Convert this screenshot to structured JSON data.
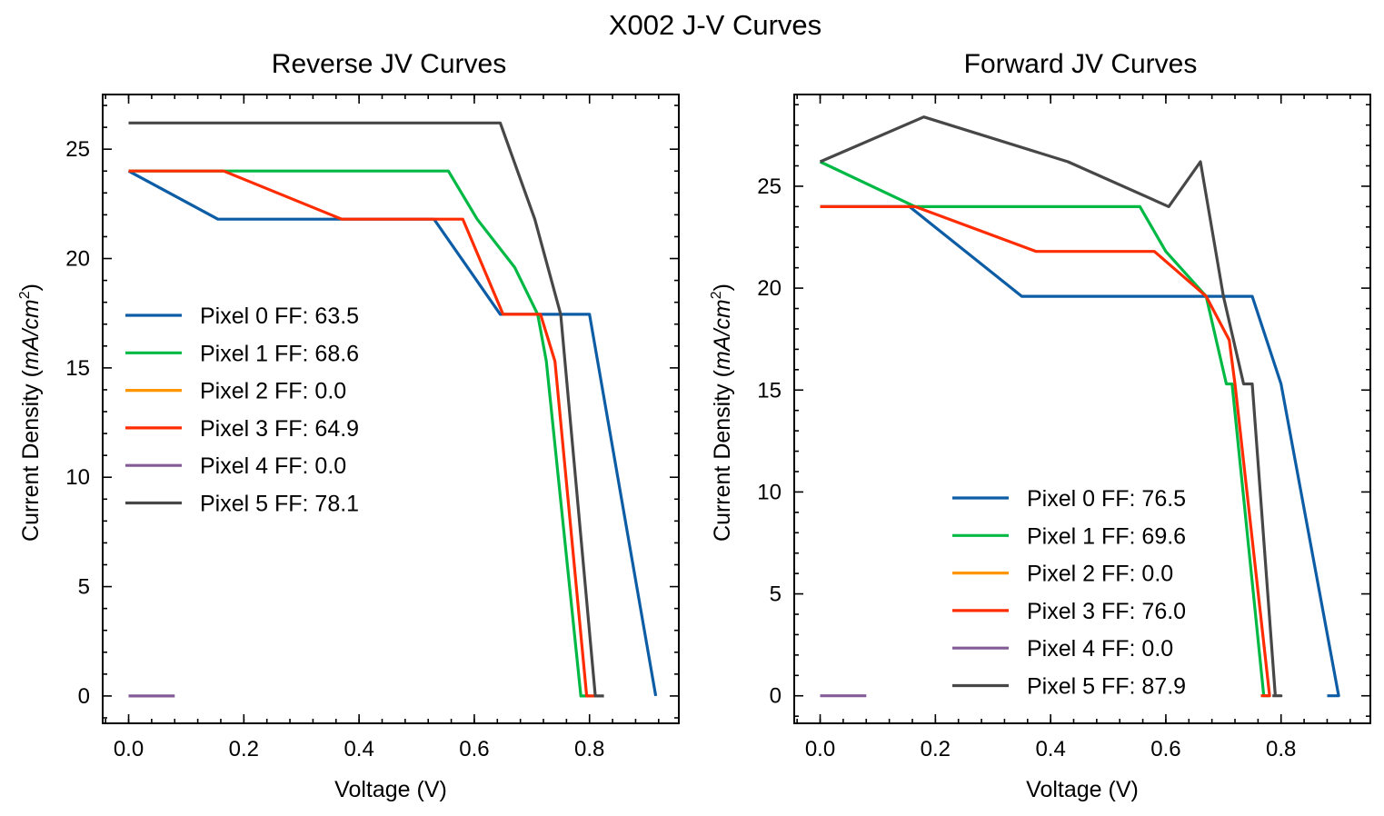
{
  "figure": {
    "title": "X002 J-V Curves"
  },
  "chart_data": [
    {
      "type": "line",
      "title": "Reverse JV Curves",
      "xlabel": "Voltage (V)",
      "ylabel_main": "Current Density (",
      "ylabel_unit": "mA/cm",
      "ylabel_exp": "2",
      "ylabel_close": ")",
      "xlim": [
        -0.045,
        0.955
      ],
      "ylim": [
        -1.25,
        27.5
      ],
      "xticks": [
        0.0,
        0.2,
        0.4,
        0.6,
        0.8
      ],
      "xtick_labels": [
        "0.0",
        "0.2",
        "0.4",
        "0.6",
        "0.8"
      ],
      "yticks": [
        0,
        5,
        10,
        15,
        20,
        25
      ],
      "ytick_labels": [
        "0",
        "5",
        "10",
        "15",
        "20",
        "25"
      ],
      "grid": false,
      "legend_position": "center-left",
      "series": [
        {
          "name": "Pixel 0 FF: 63.5",
          "color": "#0C5DA5",
          "x": [
            0.0,
            0.155,
            0.53,
            0.645,
            0.8,
            0.915
          ],
          "y": [
            24.0,
            21.8,
            21.8,
            17.45,
            17.45,
            0.0
          ]
        },
        {
          "name": "Pixel 1 FF: 68.6",
          "color": "#00B945",
          "x": [
            0.0,
            0.555,
            0.605,
            0.67,
            0.71,
            0.725,
            0.785,
            0.8
          ],
          "y": [
            24.0,
            24.0,
            21.8,
            19.6,
            17.45,
            15.3,
            0.0,
            0.0
          ]
        },
        {
          "name": "Pixel 2 FF: 0.0",
          "color": "#FF9500",
          "x": [],
          "y": []
        },
        {
          "name": "Pixel 3 FF: 64.9",
          "color": "#FF2C00",
          "x": [
            0.0,
            0.165,
            0.37,
            0.58,
            0.65,
            0.715,
            0.74,
            0.795,
            0.81
          ],
          "y": [
            24.0,
            24.0,
            21.8,
            21.8,
            17.45,
            17.45,
            15.3,
            0.0,
            0.0
          ]
        },
        {
          "name": "Pixel 4 FF: 0.0",
          "color": "#845B97",
          "x": [
            0.0,
            0.08
          ],
          "y": [
            0.0,
            0.0
          ]
        },
        {
          "name": "Pixel 5 FF: 78.1",
          "color": "#474747",
          "x": [
            0.0,
            0.645,
            0.705,
            0.75,
            0.81,
            0.825
          ],
          "y": [
            26.2,
            26.2,
            21.8,
            17.45,
            0.0,
            0.0
          ]
        }
      ]
    },
    {
      "type": "line",
      "title": "Forward JV Curves",
      "xlabel": "Voltage (V)",
      "ylabel_main": "Current Density (",
      "ylabel_unit": "mA/cm",
      "ylabel_exp": "2",
      "ylabel_close": ")",
      "xlim": [
        -0.045,
        0.955
      ],
      "ylim": [
        -1.35,
        29.5
      ],
      "xticks": [
        0.0,
        0.2,
        0.4,
        0.6,
        0.8
      ],
      "xtick_labels": [
        "0.0",
        "0.2",
        "0.4",
        "0.6",
        "0.8"
      ],
      "yticks": [
        0,
        5,
        10,
        15,
        20,
        25
      ],
      "ytick_labels": [
        "0",
        "5",
        "10",
        "15",
        "20",
        "25"
      ],
      "grid": false,
      "legend_position": "lower-right",
      "series": [
        {
          "name": "Pixel 0 FF: 76.5",
          "color": "#0C5DA5",
          "x": [
            0.0,
            0.155,
            0.35,
            0.75,
            0.8,
            0.9,
            0.88
          ],
          "y": [
            24.0,
            24.0,
            19.6,
            19.6,
            15.3,
            0.0,
            0.0
          ]
        },
        {
          "name": "Pixel 1 FF: 69.6",
          "color": "#00B945",
          "x": [
            0.0,
            0.165,
            0.555,
            0.6,
            0.67,
            0.705,
            0.715,
            0.77,
            0.78
          ],
          "y": [
            26.2,
            24.0,
            24.0,
            21.8,
            19.6,
            15.3,
            15.3,
            0.0,
            0.0
          ]
        },
        {
          "name": "Pixel 2 FF: 0.0",
          "color": "#FF9500",
          "x": [],
          "y": []
        },
        {
          "name": "Pixel 3 FF: 76.0",
          "color": "#FF2C00",
          "x": [
            0.0,
            0.165,
            0.375,
            0.58,
            0.67,
            0.71,
            0.72,
            0.78,
            0.765
          ],
          "y": [
            24.0,
            24.0,
            21.8,
            21.8,
            19.6,
            17.45,
            15.3,
            0.0,
            0.0
          ]
        },
        {
          "name": "Pixel 4 FF: 0.0",
          "color": "#845B97",
          "x": [
            0.0,
            0.08
          ],
          "y": [
            0.0,
            0.0
          ]
        },
        {
          "name": "Pixel 5 FF: 87.9",
          "color": "#474747",
          "x": [
            0.0,
            0.18,
            0.43,
            0.605,
            0.66,
            0.7,
            0.735,
            0.75,
            0.79,
            0.8,
            0.785
          ],
          "y": [
            26.2,
            28.4,
            26.2,
            24.0,
            26.2,
            19.6,
            15.3,
            15.3,
            0.0,
            0.0,
            0.0
          ]
        }
      ]
    }
  ]
}
